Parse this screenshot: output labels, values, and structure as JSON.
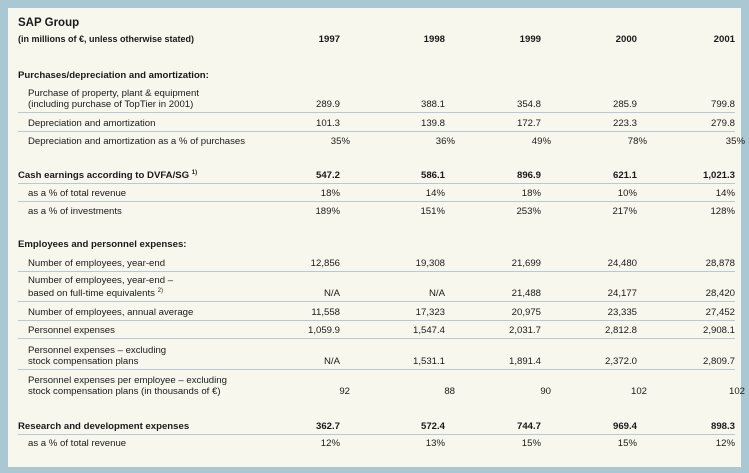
{
  "header": {
    "title": "SAP Group",
    "subtitle": "(in millions of €, unless otherwise stated)",
    "years": [
      "1997",
      "1998",
      "1999",
      "2000",
      "2001"
    ]
  },
  "sections": {
    "purchases": {
      "heading": "Purchases/depreciation and amortization:",
      "rows": [
        {
          "label_l1": "Purchase of property, plant & equipment",
          "label_l2": "(including purchase of TopTier in 2001)",
          "values": [
            "289.9",
            "388.1",
            "354.8",
            "285.9",
            "799.8"
          ]
        },
        {
          "label": "Depreciation and amortization",
          "values": [
            "101.3",
            "139.8",
            "172.7",
            "223.3",
            "279.8"
          ]
        },
        {
          "label": "Depreciation and amortization as a % of purchases",
          "values": [
            "35%",
            "36%",
            "49%",
            "78%",
            "35%"
          ]
        }
      ]
    },
    "cash": {
      "heading": "Cash earnings according to DVFA/SG",
      "footnote": "1)",
      "values": [
        "547.2",
        "586.1",
        "896.9",
        "621.1",
        "1,021.3"
      ],
      "rows": [
        {
          "label": "as a % of total revenue",
          "values": [
            "18%",
            "14%",
            "18%",
            "10%",
            "14%"
          ]
        },
        {
          "label": "as a % of investments",
          "values": [
            "189%",
            "151%",
            "253%",
            "217%",
            "128%"
          ]
        }
      ]
    },
    "employees": {
      "heading": "Employees and personnel expenses:",
      "rows": [
        {
          "label": "Number of employees, year-end",
          "values": [
            "12,856",
            "19,308",
            "21,699",
            "24,480",
            "28,878"
          ]
        },
        {
          "label_l1": "Number of employees, year-end –",
          "label_l2": "based on full-time equivalents",
          "footnote": "2)",
          "values": [
            "N/A",
            "N/A",
            "21,488",
            "24,177",
            "28,420"
          ]
        },
        {
          "label": "Number of employees, annual average",
          "values": [
            "11,558",
            "17,323",
            "20,975",
            "23,335",
            "27,452"
          ]
        },
        {
          "label": "Personnel expenses",
          "values": [
            "1,059.9",
            "1,547.4",
            "2,031.7",
            "2,812.8",
            "2,908.1"
          ]
        },
        {
          "label_l1": "Personnel expenses – excluding",
          "label_l2": "stock compensation plans",
          "values": [
            "N/A",
            "1,531.1",
            "1,891.4",
            "2,372.0",
            "2,809.7"
          ]
        },
        {
          "label_l1": "Personnel expenses per employee – excluding",
          "label_l2": "stock compensation plans (in thousands of €)",
          "values": [
            "92",
            "88",
            "90",
            "102",
            "102"
          ]
        }
      ]
    },
    "rnd": {
      "heading": "Research and development expenses",
      "values": [
        "362.7",
        "572.4",
        "744.7",
        "969.4",
        "898.3"
      ],
      "rows": [
        {
          "label": "as a % of total revenue",
          "values": [
            "12%",
            "13%",
            "15%",
            "15%",
            "12%"
          ]
        }
      ]
    }
  }
}
